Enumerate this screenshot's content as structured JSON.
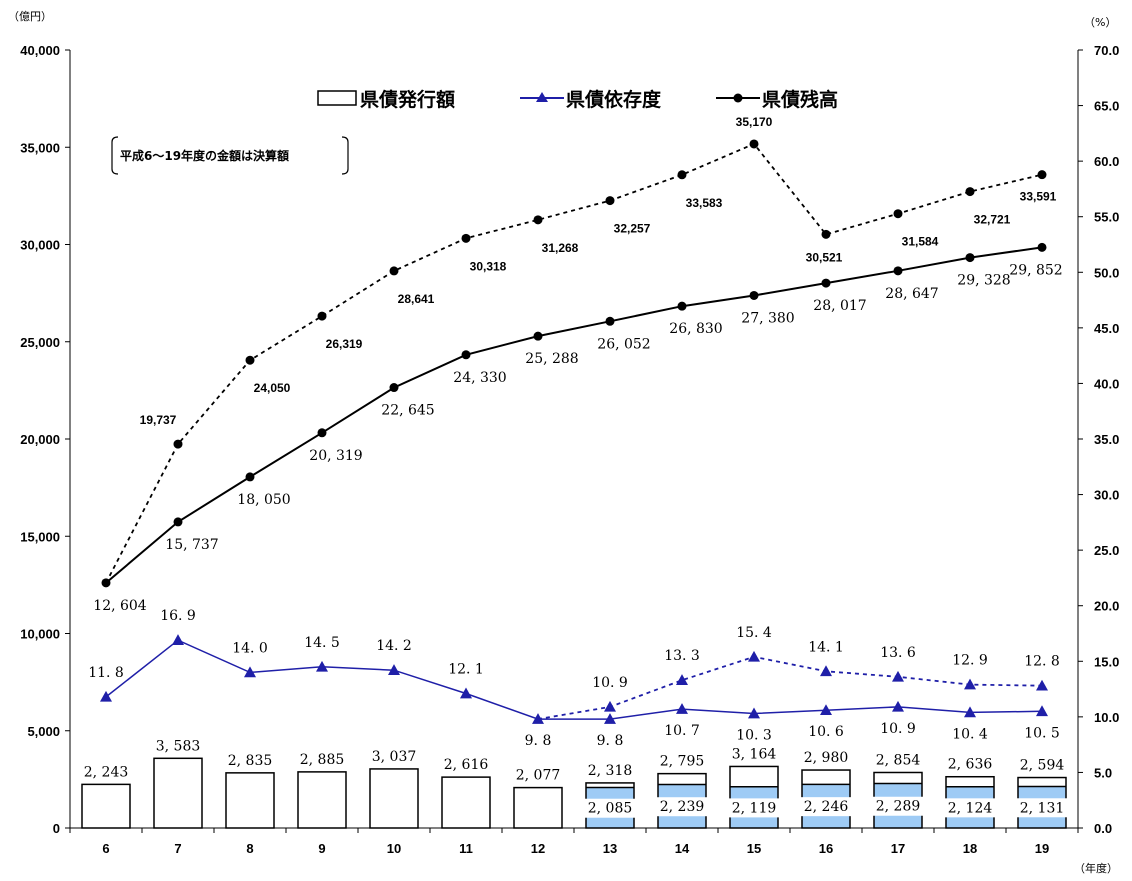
{
  "chart_data": {
    "type": "bar",
    "left_unit": "（億円）",
    "right_unit": "（%）",
    "x_unit": "（年度）",
    "categories": [
      "6",
      "7",
      "8",
      "9",
      "10",
      "11",
      "12",
      "13",
      "14",
      "15",
      "16",
      "17",
      "18",
      "19"
    ],
    "y_left": {
      "min": 0,
      "max": 40000,
      "step": 5000,
      "tick_labels": [
        "0",
        "5,000",
        "10,000",
        "15,000",
        "20,000",
        "25,000",
        "30,000",
        "35,000",
        "40,000"
      ]
    },
    "y_right": {
      "min": 0,
      "max": 70,
      "step": 5,
      "tick_labels": [
        "0.0",
        "5.0",
        "10.0",
        "15.0",
        "20.0",
        "25.0",
        "30.0",
        "35.0",
        "40.0",
        "45.0",
        "50.0",
        "55.0",
        "60.0",
        "65.0",
        "70.0"
      ]
    },
    "legend": {
      "bar": "県債発行額",
      "dependency": "県債依存度",
      "balance": "県債残高"
    },
    "note": "平成6～19年度の金額は決算額",
    "colors": {
      "dependency": "#1f1fa8",
      "fill": "#9ecbf5",
      "line": "#000000"
    },
    "series": [
      {
        "name": "県債発行額",
        "axis": "left",
        "values": [
          2243,
          3583,
          2835,
          2885,
          3037,
          2616,
          2077,
          2318,
          2795,
          3164,
          2980,
          2854,
          2636,
          2594
        ],
        "labels": [
          "2, 243",
          "3, 583",
          "2, 835",
          "2, 885",
          "3, 037",
          "2, 616",
          "2, 077",
          "2, 318",
          "2, 795",
          "3, 164",
          "2, 980",
          "2, 854",
          "2, 636",
          "2, 594"
        ]
      },
      {
        "axis": "left",
        "values": [
          null,
          null,
          null,
          null,
          null,
          null,
          null,
          2085,
          2239,
          2119,
          2246,
          2289,
          2124,
          2131
        ],
        "labels": [
          "",
          "",
          "",
          "",
          "",
          "",
          "",
          "2, 085",
          "2, 239",
          "2, 119",
          "2, 246",
          "2, 289",
          "2, 124",
          "2, 131"
        ]
      },
      {
        "name": "県債依存度",
        "axis": "right",
        "values": [
          11.8,
          16.9,
          14.0,
          14.5,
          14.2,
          12.1,
          9.8,
          9.8,
          10.7,
          10.3,
          10.6,
          10.9,
          10.4,
          10.5
        ],
        "labels": [
          "11. 8",
          "16. 9",
          "14. 0",
          "14. 5",
          "14. 2",
          "12. 1",
          "9. 8",
          "9. 8",
          "10. 7",
          "10. 3",
          "10. 6",
          "10. 9",
          "10. 4",
          "10. 5"
        ]
      },
      {
        "axis": "right",
        "values": [
          null,
          null,
          null,
          null,
          null,
          null,
          9.8,
          10.9,
          13.3,
          15.4,
          14.1,
          13.6,
          12.9,
          12.8
        ],
        "labels": [
          "",
          "",
          "",
          "",
          "",
          "",
          "",
          "10. 9",
          "13. 3",
          "15. 4",
          "14. 1",
          "13. 6",
          "12. 9",
          "12. 8"
        ]
      },
      {
        "name": "県債残高",
        "axis": "left",
        "values": [
          12604,
          15737,
          18050,
          20319,
          22645,
          24330,
          25288,
          26052,
          26830,
          27380,
          28017,
          28647,
          29328,
          29852
        ],
        "labels": [
          "12, 604",
          "15, 737",
          "18, 050",
          "20, 319",
          "22, 645",
          "24, 330",
          "25, 288",
          "26, 052",
          "26, 830",
          "27, 380",
          "28, 017",
          "28, 647",
          "29, 328",
          "29, 852"
        ]
      },
      {
        "axis": "left",
        "values": [
          12604,
          19737,
          24050,
          26319,
          28641,
          30318,
          31268,
          32257,
          33583,
          35170,
          30521,
          31584,
          32721,
          33591
        ],
        "labels": [
          "",
          "19,737",
          "24,050",
          "26,319",
          "28,641",
          "30,318",
          "31,268",
          "32,257",
          "33,583",
          "35,170",
          "30,521",
          "31,584",
          "32,721",
          "33,591"
        ]
      }
    ]
  }
}
